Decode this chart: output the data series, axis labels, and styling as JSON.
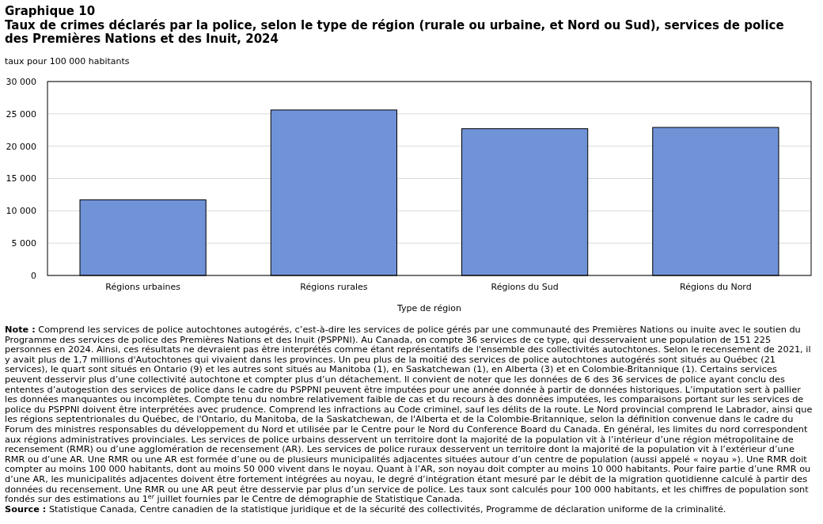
{
  "chart_data": {
    "type": "bar",
    "title": "Graphique 10",
    "subtitle": "Taux de crimes déclarés par la police, selon le type de région (rurale ou urbaine, et Nord ou Sud), services de police des Premières Nations et des Inuit, 2024",
    "ylabel": "taux pour 100 000 habitants",
    "xlabel": "Type de région",
    "categories": [
      "Régions urbaines",
      "Régions rurales",
      "Régions du Sud",
      "Régions du Nord"
    ],
    "values": [
      11700,
      25600,
      22700,
      22900
    ],
    "color": "#7093d8",
    "ylim": [
      0,
      30000
    ],
    "yticks": [
      {
        "value": 0,
        "label": "0"
      },
      {
        "value": 5000,
        "label": "5 000"
      },
      {
        "value": 10000,
        "label": "10 000"
      },
      {
        "value": 15000,
        "label": "15 000"
      },
      {
        "value": 20000,
        "label": "20 000"
      },
      {
        "value": 25000,
        "label": "25 000"
      },
      {
        "value": 30000,
        "label": "30 000"
      }
    ],
    "grid": "y",
    "annotations": [
      "Note : Comprend les services de police autochtones autogérés, c’est-à-dire les services de police gérés par une communauté des Premières Nations ou inuite avec le soutien du Programme des services de police des Premières Nations et des Inuit (PSPPNI). Au Canada, on compte 36 services de ce type, qui desservaient une population de 151 225 personnes en 2024. Ainsi, ces résultats ne devraient pas être interprétés comme étant représentatifs de l'ensemble des collectivités autochtones. Selon le recensement de 2021, il y avait plus de 1,7 millions d'Autochtones qui vivaient dans les provinces. Un peu plus de la moitié des services de police autochtones autogérés sont situés au Québec (21 services), le quart sont situés en Ontario (9) et les autres sont situés au Manitoba (1), en Saskatchewan (1), en Alberta (3) et en Colombie-Britannique (1). Certains services peuvent desservir plus d’une collectivité autochtone et compter plus d’un détachement. Il convient de noter que les données de 6 des 36 services de police ayant conclu des ententes d’autogestion des services de police dans le cadre du PSPPNI peuvent être imputées pour une année donnée à partir de données historiques. L’imputation sert à pallier les données manquantes ou incomplètes. Compte tenu du nombre relativement faible de cas et du recours à des données imputées, les comparaisons portant sur les services de police du PSPPNI doivent être interprétées avec prudence. Comprend les infractions au Code criminel, sauf les délits de la route. Le Nord provincial comprend le Labrador, ainsi que les régions septentrionales du Québec, de l'Ontario, du Manitoba, de la Saskatchewan, de l'Alberta et de la Colombie-Britannique, selon la définition convenue dans le cadre du Forum des ministres responsables du développement du Nord et utilisée par le Centre pour le Nord du Conference Board du Canada. En général, les limites du nord correspondent aux régions administratives provinciales. Les services de police urbains desservent un territoire dont la majorité de la population vit à l’intérieur d’une région métropolitaine de recensement (RMR) ou d’une agglomération de recensement (AR). Les services de police ruraux desservent un territoire dont la majorité de la population vit à l’extérieur d’une RMR ou d’une AR. Une RMR ou une AR est formée d’une ou de plusieurs municipalités adjacentes situées autour d’un centre de population (aussi appelé « noyau »). Une RMR doit compter au moins 100 000 habitants, dont au moins 50 000 vivent dans le noyau. Quant à l’AR, son noyau doit compter au moins 10 000 habitants. Pour faire partie d’une RMR ou d’une AR, les municipalités adjacentes doivent être fortement intégrées au noyau, le degré d’intégration étant mesuré par le débit de la migration quotidienne calculé à partir des données du recensement. Une RMR ou une AR peut être desservie par plus d’un service de police. Les taux sont calculés pour 100 000 habitants, et les chiffres de population sont fondés sur des estimations au 1$^{er}$ juillet fournies par le Centre de démographie de Statistique Canada.",
      "Source : Statistique Canada, Centre canadien de la statistique juridique et de la sécurité des collectivités, Programme de déclaration uniforme de la criminalité."
    ]
  }
}
